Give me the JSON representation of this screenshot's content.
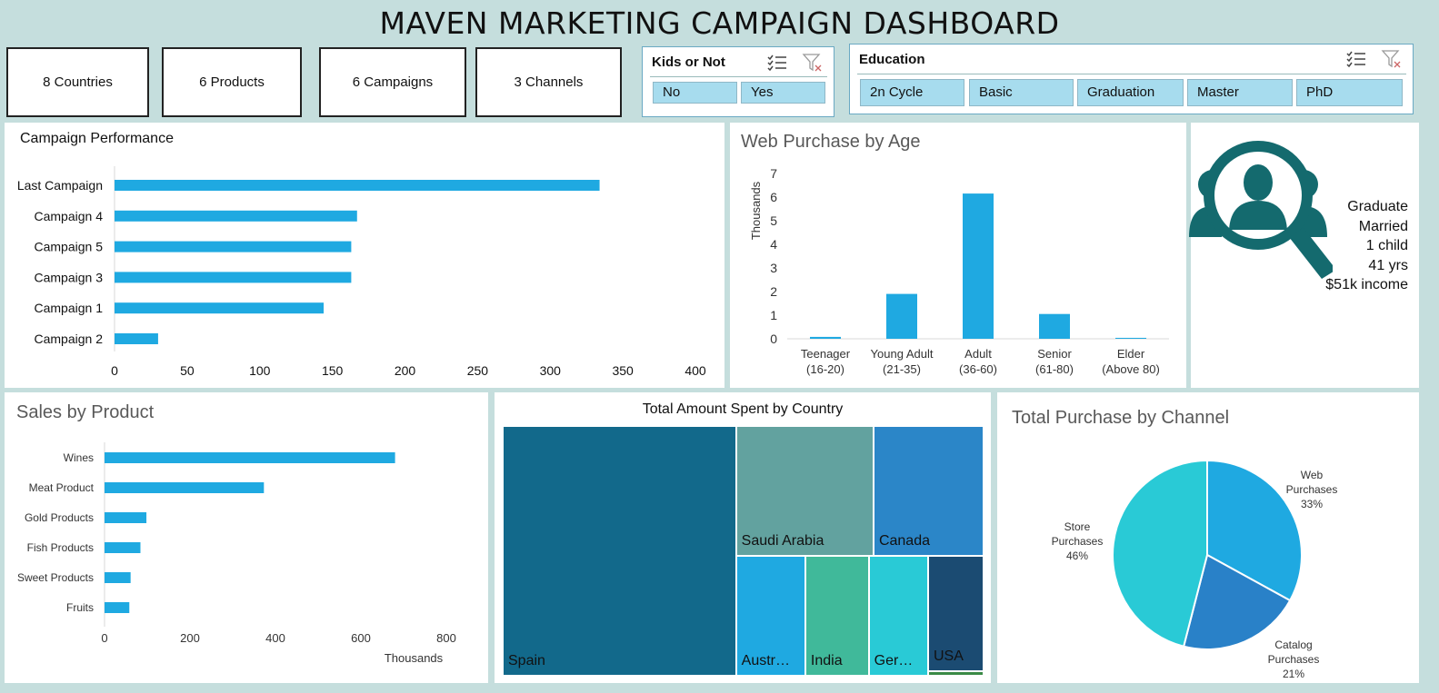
{
  "header": {
    "title": "MAVEN MARKETING CAMPAIGN DASHBOARD"
  },
  "kpis": [
    {
      "label": "8 Countries"
    },
    {
      "label": "6 Products"
    },
    {
      "label": "6 Campaigns"
    },
    {
      "label": "3 Channels"
    }
  ],
  "slicers": {
    "kids": {
      "title": "Kids or Not",
      "options": [
        "No",
        "Yes"
      ]
    },
    "education": {
      "title": "Education",
      "options": [
        "2n Cycle",
        "Basic",
        "Graduation",
        "Master",
        "PhD"
      ]
    }
  },
  "persona": {
    "lines": [
      "Graduate",
      "Married",
      "1 child",
      "41 yrs",
      "$51k income"
    ],
    "icon": "user-search-icon",
    "color": "#146a6e"
  },
  "chart_data": [
    {
      "id": "campaign",
      "type": "bar",
      "orientation": "horizontal",
      "title": "Campaign Performance",
      "categories": [
        "Last Campaign",
        "Campaign 4",
        "Campaign 5",
        "Campaign 3",
        "Campaign 1",
        "Campaign 2"
      ],
      "values": [
        334,
        167,
        163,
        163,
        144,
        30
      ],
      "xlim": [
        0,
        400
      ],
      "xticks": [
        0,
        50,
        100,
        150,
        200,
        250,
        300,
        350,
        400
      ],
      "color": "#1fa9e1"
    },
    {
      "id": "age",
      "type": "bar",
      "title": "Web Purchase by Age",
      "ylabel": "Thousands",
      "categories": [
        [
          "Teenager",
          "(16-20)"
        ],
        [
          "Young Adult",
          "(21-35)"
        ],
        [
          "Adult",
          "(36-60)"
        ],
        [
          "Senior",
          "(61-80)"
        ],
        [
          "Elder",
          "(Above 80)"
        ]
      ],
      "values": [
        0.08,
        1.9,
        6.15,
        1.05,
        0.04
      ],
      "ylim": [
        0,
        7
      ],
      "yticks": [
        0,
        1,
        2,
        3,
        4,
        5,
        6,
        7
      ],
      "color": "#1fa9e1"
    },
    {
      "id": "product",
      "type": "bar",
      "orientation": "horizontal",
      "title": "Sales by Product",
      "xlabel": "Thousands",
      "categories": [
        "Wines",
        "Meat Product",
        "Gold Products",
        "Fish Products",
        "Sweet Products",
        "Fruits"
      ],
      "values": [
        680,
        373,
        98,
        84,
        61,
        58
      ],
      "xlim": [
        0,
        800
      ],
      "xticks": [
        0,
        200,
        400,
        600,
        800
      ],
      "color": "#1fa9e1"
    },
    {
      "id": "country",
      "type": "treemap",
      "title": "Total Amount Spent by Country",
      "items": [
        {
          "label": "Spain",
          "value": 49,
          "color": "#12698b"
        },
        {
          "label": "Saudi Arabia",
          "value": 15,
          "color": "#62a29f"
        },
        {
          "label": "Canada",
          "value": 12,
          "color": "#2b86c8"
        },
        {
          "label": "Austr…",
          "value": 7,
          "color": "#1fa9e1"
        },
        {
          "label": "India",
          "value": 6.4,
          "color": "#40b99a"
        },
        {
          "label": "Ger…",
          "value": 6,
          "color": "#29cad6"
        },
        {
          "label": "USA",
          "value": 5.4,
          "color": "#1b4b72"
        },
        {
          "label": "",
          "value": 0.2,
          "color": "#3a8a46"
        }
      ]
    },
    {
      "id": "channel",
      "type": "pie",
      "title": "Total Purchase by Channel",
      "slices": [
        {
          "label": [
            "Web",
            "Purchases"
          ],
          "pct": "33%",
          "value": 33,
          "color": "#1fa9e1"
        },
        {
          "label": [
            "Catalog",
            "Purchases"
          ],
          "pct": "21%",
          "value": 21,
          "color": "#2981c8"
        },
        {
          "label": [
            "Store",
            "Purchases"
          ],
          "pct": "46%",
          "value": 46,
          "color": "#29cad6"
        }
      ]
    }
  ]
}
